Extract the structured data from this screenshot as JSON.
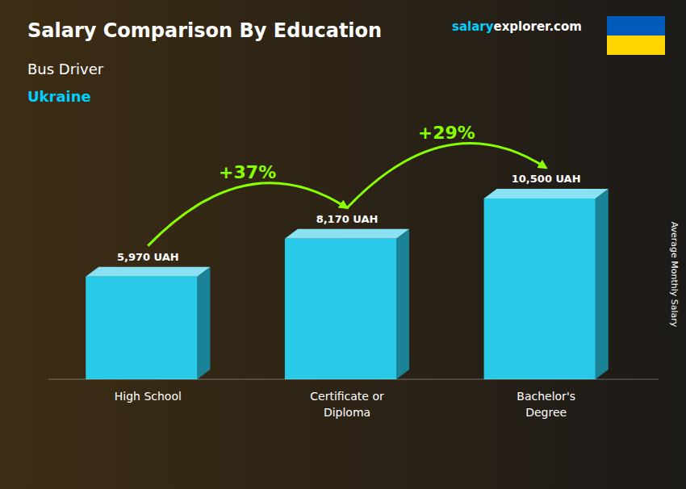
{
  "chart_data": {
    "type": "bar",
    "title": "Salary Comparison By Education",
    "subtitle": "Bus Driver",
    "ylabel": "Average Monthly Salary",
    "categories": [
      "High School",
      "Certificate or\nDiploma",
      "Bachelor's\nDegree"
    ],
    "values": [
      5970,
      8170,
      10500
    ],
    "value_labels": [
      "5,970 UAH",
      "8,170 UAH",
      "10,500 UAH"
    ],
    "data_labels": true,
    "color": "#29c9e8",
    "ylim": [
      0,
      15000
    ],
    "tick_labels": false,
    "grid": false,
    "annotations": [
      {
        "text": "Ukraine",
        "color": "#00cfff"
      },
      {
        "text": "salary",
        "color": "#00cfff"
      },
      {
        "text": "explorer",
        "color": "#ffffff"
      },
      {
        "text": ".com",
        "color": "#ffffff"
      },
      {
        "text": "+37%",
        "color": "#88ff00"
      },
      {
        "text": "+29%",
        "color": "#88ff00"
      }
    ]
  }
}
